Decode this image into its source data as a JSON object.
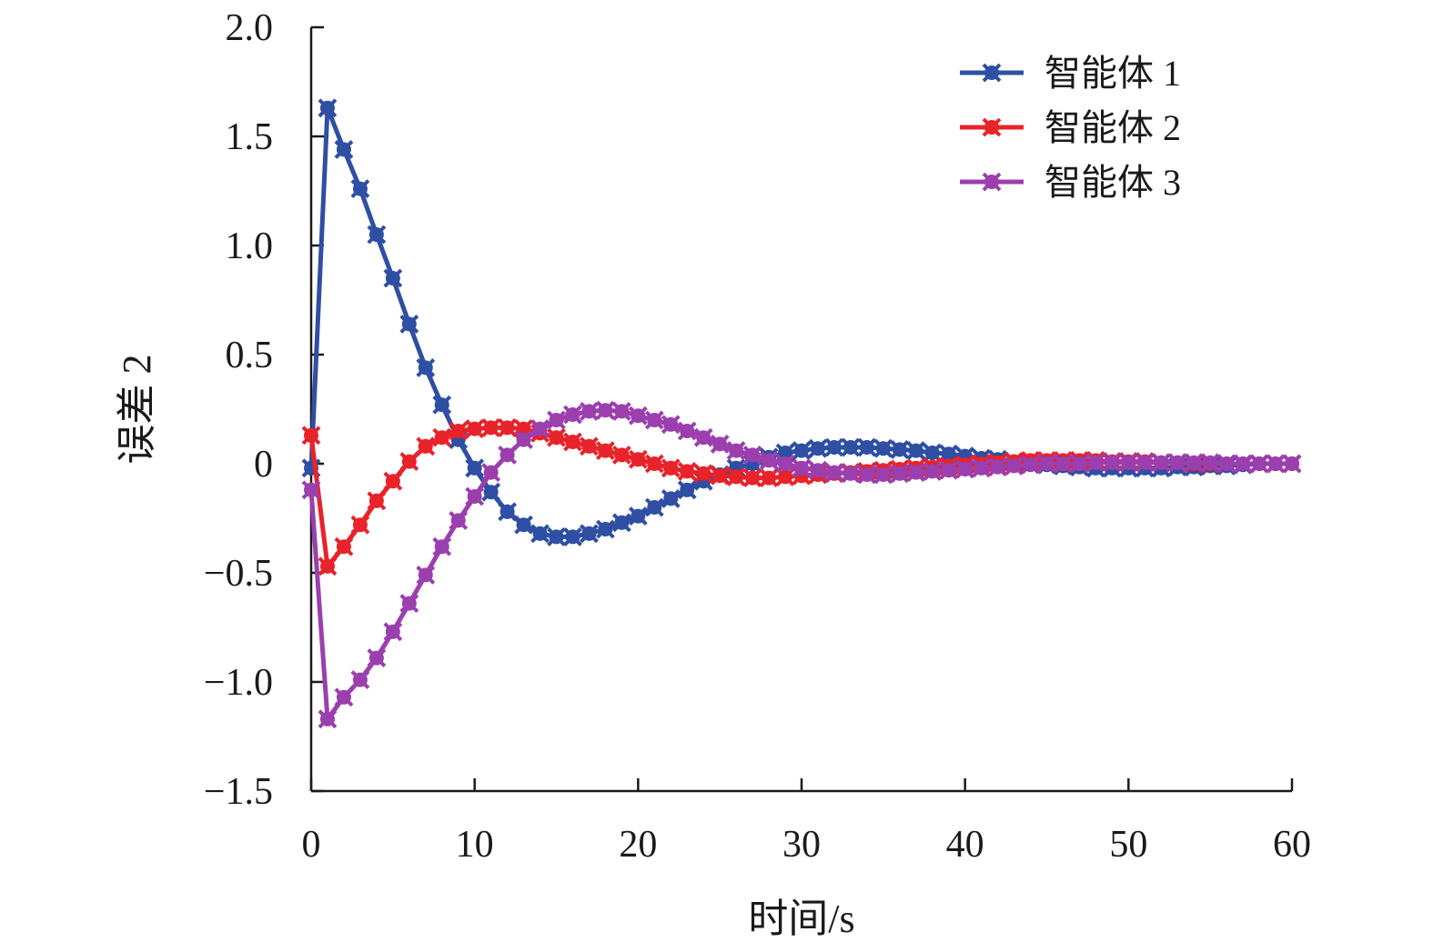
{
  "chart_data": {
    "type": "line",
    "title": "",
    "xlabel": "时间/s",
    "ylabel": "误差 2",
    "xlim": [
      0,
      60
    ],
    "ylim": [
      -1.5,
      2.0
    ],
    "x_ticks": [
      0,
      10,
      20,
      30,
      40,
      50,
      60
    ],
    "y_ticks": [
      -1.5,
      -1.0,
      -0.5,
      0,
      0.5,
      1.0,
      1.5,
      2.0
    ],
    "x_tick_labels": [
      "0",
      "10",
      "20",
      "30",
      "40",
      "50",
      "60"
    ],
    "y_tick_labels": [
      "−1.5",
      "−1.0",
      "−0.5",
      "0",
      "0.5",
      "1.0",
      "1.5",
      "2.0"
    ],
    "legend_position": "top-right",
    "series": [
      {
        "name": "智能体 1",
        "color": "#2e4fa3",
        "x": [
          0,
          1,
          2,
          3,
          4,
          5,
          6,
          7,
          8,
          9,
          10,
          11,
          12,
          13,
          14,
          15,
          16,
          17,
          18,
          19,
          20,
          21,
          22,
          23,
          24,
          25,
          26,
          27,
          28,
          29,
          30,
          31,
          32,
          33,
          34,
          35,
          36,
          37,
          38,
          39,
          40,
          41,
          42,
          43,
          44,
          45,
          46,
          47,
          48,
          49,
          50,
          51,
          52,
          53,
          54,
          55,
          56,
          57,
          58,
          59,
          60
        ],
        "values": [
          -0.02,
          1.63,
          1.44,
          1.26,
          1.05,
          0.85,
          0.64,
          0.44,
          0.27,
          0.11,
          -0.02,
          -0.13,
          -0.22,
          -0.28,
          -0.32,
          -0.335,
          -0.335,
          -0.32,
          -0.3,
          -0.27,
          -0.24,
          -0.2,
          -0.16,
          -0.12,
          -0.08,
          -0.05,
          -0.02,
          0.0,
          0.03,
          0.05,
          0.06,
          0.07,
          0.075,
          0.075,
          0.075,
          0.07,
          0.065,
          0.06,
          0.05,
          0.045,
          0.035,
          0.025,
          0.02,
          0.01,
          0.0,
          -0.005,
          -0.01,
          -0.015,
          -0.02,
          -0.02,
          -0.02,
          -0.02,
          -0.02,
          -0.015,
          -0.015,
          -0.01,
          -0.01,
          -0.005,
          0.0,
          0.0,
          0.0
        ]
      },
      {
        "name": "智能体 2",
        "color": "#e8232a",
        "x": [
          0,
          1,
          2,
          3,
          4,
          5,
          6,
          7,
          8,
          9,
          10,
          11,
          12,
          13,
          14,
          15,
          16,
          17,
          18,
          19,
          20,
          21,
          22,
          23,
          24,
          25,
          26,
          27,
          28,
          29,
          30,
          31,
          32,
          33,
          34,
          35,
          36,
          37,
          38,
          39,
          40,
          41,
          42,
          43,
          44,
          45,
          46,
          47,
          48,
          49,
          50,
          51,
          52,
          53,
          54,
          55,
          56,
          57,
          58,
          59,
          60
        ],
        "values": [
          0.13,
          -0.47,
          -0.38,
          -0.28,
          -0.17,
          -0.08,
          0.01,
          0.08,
          0.12,
          0.15,
          0.16,
          0.165,
          0.165,
          0.16,
          0.14,
          0.12,
          0.1,
          0.08,
          0.06,
          0.04,
          0.02,
          0.0,
          -0.02,
          -0.035,
          -0.045,
          -0.055,
          -0.06,
          -0.065,
          -0.065,
          -0.06,
          -0.055,
          -0.05,
          -0.045,
          -0.04,
          -0.035,
          -0.03,
          -0.025,
          -0.02,
          -0.015,
          -0.01,
          -0.005,
          0.0,
          0.005,
          0.01,
          0.015,
          0.015,
          0.015,
          0.015,
          0.015,
          0.01,
          0.01,
          0.01,
          0.005,
          0.005,
          0.0,
          0.0,
          0.0,
          0.0,
          0.0,
          0.0,
          0.0
        ]
      },
      {
        "name": "智能体 3",
        "color": "#9b3fae",
        "x": [
          0,
          1,
          2,
          3,
          4,
          5,
          6,
          7,
          8,
          9,
          10,
          11,
          12,
          13,
          14,
          15,
          16,
          17,
          18,
          19,
          20,
          21,
          22,
          23,
          24,
          25,
          26,
          27,
          28,
          29,
          30,
          31,
          32,
          33,
          34,
          35,
          36,
          37,
          38,
          39,
          40,
          41,
          42,
          43,
          44,
          45,
          46,
          47,
          48,
          49,
          50,
          51,
          52,
          53,
          54,
          55,
          56,
          57,
          58,
          59,
          60
        ],
        "values": [
          -0.12,
          -1.17,
          -1.07,
          -0.99,
          -0.89,
          -0.77,
          -0.64,
          -0.51,
          -0.38,
          -0.26,
          -0.15,
          -0.04,
          0.04,
          0.11,
          0.16,
          0.2,
          0.225,
          0.24,
          0.245,
          0.24,
          0.22,
          0.2,
          0.18,
          0.15,
          0.12,
          0.09,
          0.06,
          0.04,
          0.015,
          0.0,
          -0.02,
          -0.03,
          -0.04,
          -0.045,
          -0.05,
          -0.05,
          -0.045,
          -0.04,
          -0.035,
          -0.03,
          -0.025,
          -0.02,
          -0.015,
          -0.01,
          -0.005,
          0.0,
          0.0,
          0.0,
          0.005,
          0.005,
          0.005,
          0.005,
          0.005,
          0.005,
          0.005,
          0.005,
          0.0,
          0.0,
          0.0,
          0.0,
          0.0
        ]
      }
    ]
  }
}
